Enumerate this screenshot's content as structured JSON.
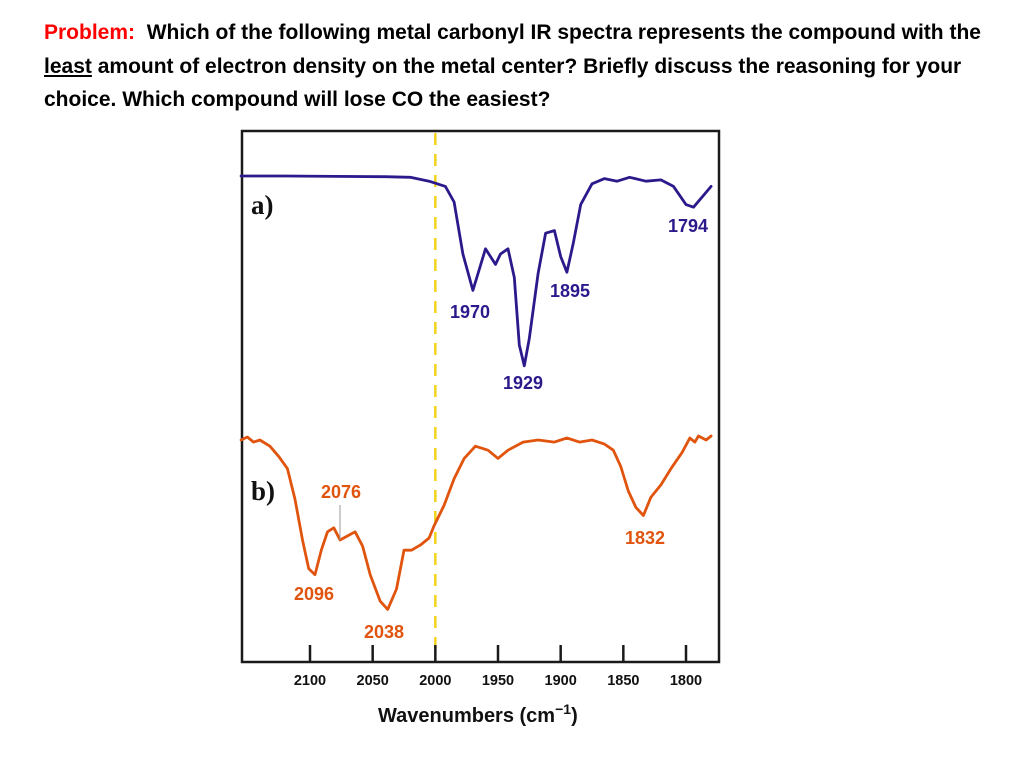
{
  "problem": {
    "label": "Problem:",
    "text_1": "Which of the following metal carbonyl IR spectra represents the compound with the",
    "emphasis": "least",
    "text_2": "amount of electron density on the metal center? Briefly discuss the reasoning for your choice.  Which compound will lose CO the easiest?"
  },
  "chart_data": {
    "type": "line",
    "title": "",
    "xlabel": "Wavenumbers (cm",
    "xlabel_sup": "−1",
    "xlabel_close": ")",
    "ylabel": "",
    "xlim": [
      2155,
      1780
    ],
    "x_reversed": true,
    "x_ticks": [
      "2100",
      "2050",
      "2000",
      "1950",
      "1900",
      "1850",
      "1800"
    ],
    "x_tick_values": [
      2100,
      2050,
      2000,
      1950,
      1900,
      1850,
      1800
    ],
    "reference_line": {
      "x": 2000,
      "style": "dashed",
      "color": "#f2d21c"
    },
    "series": [
      {
        "name": "a)",
        "color": "#2c1a8c",
        "baseline": 0,
        "points": [
          [
            2155,
            0
          ],
          [
            2120,
            0
          ],
          [
            2080,
            0.3
          ],
          [
            2040,
            0.5
          ],
          [
            2020,
            1
          ],
          [
            2005,
            4
          ],
          [
            1992,
            8
          ],
          [
            1985,
            20
          ],
          [
            1978,
            60
          ],
          [
            1970,
            88
          ],
          [
            1965,
            72
          ],
          [
            1960,
            56
          ],
          [
            1952,
            68
          ],
          [
            1948,
            60
          ],
          [
            1942,
            56
          ],
          [
            1937,
            78
          ],
          [
            1933,
            130
          ],
          [
            1929,
            146
          ],
          [
            1925,
            125
          ],
          [
            1918,
            75
          ],
          [
            1912,
            44
          ],
          [
            1905,
            42
          ],
          [
            1900,
            62
          ],
          [
            1895,
            74
          ],
          [
            1890,
            52
          ],
          [
            1884,
            22
          ],
          [
            1875,
            6
          ],
          [
            1865,
            2
          ],
          [
            1855,
            4
          ],
          [
            1845,
            1
          ],
          [
            1832,
            4
          ],
          [
            1820,
            3
          ],
          [
            1810,
            8
          ],
          [
            1800,
            22
          ],
          [
            1794,
            24
          ],
          [
            1787,
            16
          ],
          [
            1780,
            8
          ]
        ],
        "peaks": [
          {
            "label": "1970",
            "x": 1970
          },
          {
            "label": "1929",
            "x": 1929
          },
          {
            "label": "1895",
            "x": 1895
          },
          {
            "label": "1794",
            "x": 1794
          }
        ]
      },
      {
        "name": "b)",
        "color": "#e0540e",
        "baseline": 0,
        "points": [
          [
            2155,
            2
          ],
          [
            2150,
            -1
          ],
          [
            2145,
            4
          ],
          [
            2140,
            2
          ],
          [
            2132,
            8
          ],
          [
            2125,
            18
          ],
          [
            2118,
            30
          ],
          [
            2112,
            60
          ],
          [
            2106,
            100
          ],
          [
            2101,
            128
          ],
          [
            2096,
            134
          ],
          [
            2091,
            110
          ],
          [
            2086,
            92
          ],
          [
            2081,
            88
          ],
          [
            2076,
            100
          ],
          [
            2070,
            96
          ],
          [
            2064,
            92
          ],
          [
            2058,
            106
          ],
          [
            2052,
            134
          ],
          [
            2044,
            160
          ],
          [
            2038,
            168
          ],
          [
            2031,
            148
          ],
          [
            2025,
            110
          ],
          [
            2019,
            110
          ],
          [
            2012,
            105
          ],
          [
            2005,
            98
          ],
          [
            2001,
            86
          ],
          [
            1993,
            66
          ],
          [
            1985,
            40
          ],
          [
            1977,
            20
          ],
          [
            1968,
            8
          ],
          [
            1958,
            12
          ],
          [
            1950,
            20
          ],
          [
            1942,
            12
          ],
          [
            1930,
            4
          ],
          [
            1918,
            2
          ],
          [
            1905,
            4
          ],
          [
            1895,
            0
          ],
          [
            1885,
            4
          ],
          [
            1875,
            2
          ],
          [
            1865,
            6
          ],
          [
            1858,
            12
          ],
          [
            1852,
            28
          ],
          [
            1846,
            52
          ],
          [
            1840,
            68
          ],
          [
            1834,
            76
          ],
          [
            1828,
            58
          ],
          [
            1820,
            46
          ],
          [
            1812,
            30
          ],
          [
            1803,
            14
          ],
          [
            1797,
            0
          ],
          [
            1793,
            4
          ],
          [
            1790,
            -2
          ],
          [
            1784,
            2
          ],
          [
            1780,
            -2
          ]
        ],
        "peaks": [
          {
            "label": "2096",
            "x": 2096
          },
          {
            "label": "2076",
            "x": 2076
          },
          {
            "label": "2038",
            "x": 2038
          },
          {
            "label": "1832",
            "x": 1832
          }
        ]
      }
    ]
  }
}
